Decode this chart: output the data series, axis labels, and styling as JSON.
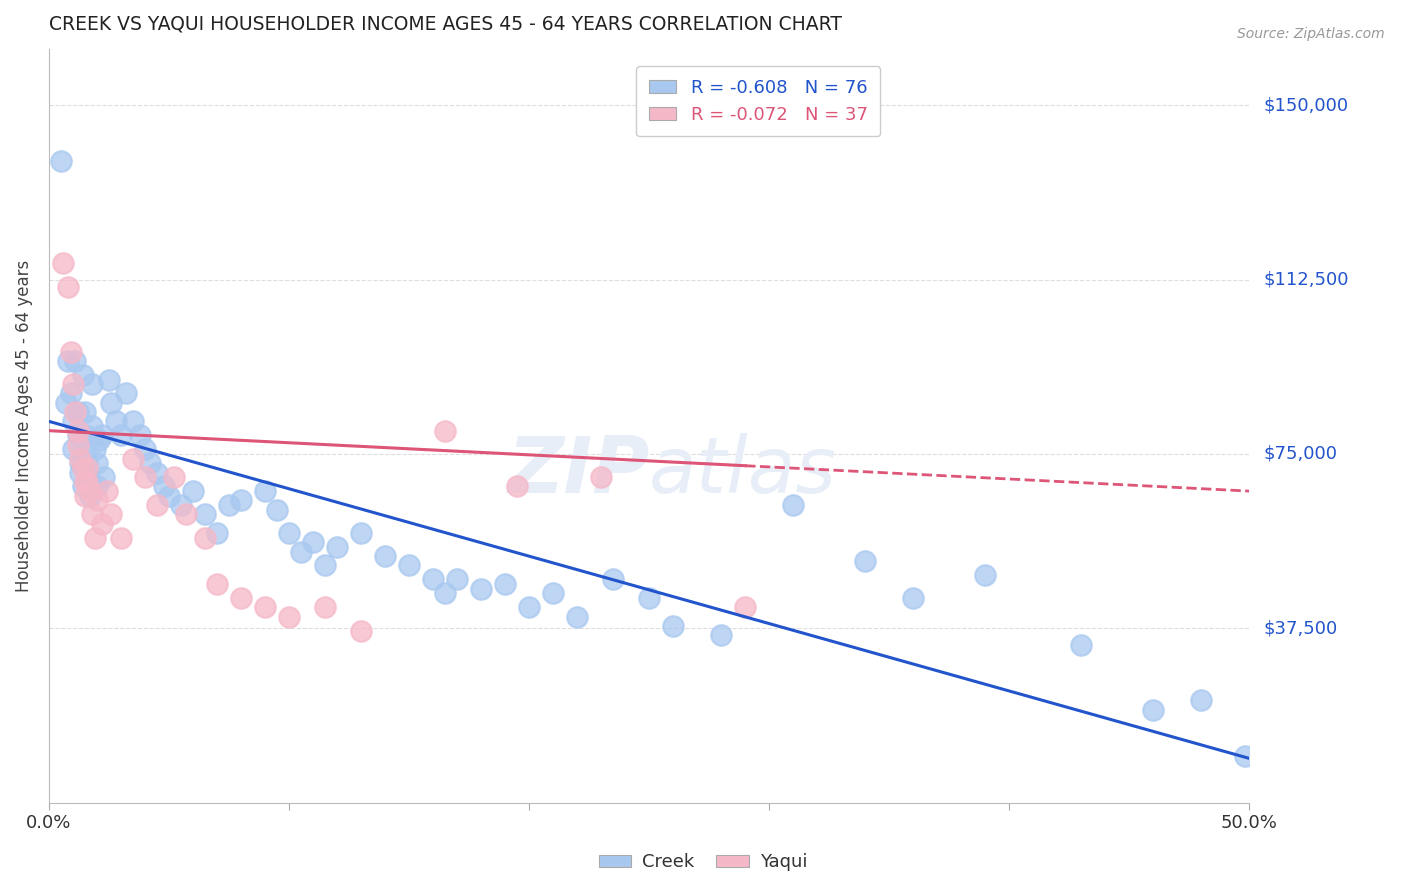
{
  "title": "CREEK VS YAQUI HOUSEHOLDER INCOME AGES 45 - 64 YEARS CORRELATION CHART",
  "source": "Source: ZipAtlas.com",
  "ylabel": "Householder Income Ages 45 - 64 years",
  "xlim": [
    0.0,
    0.5
  ],
  "ylim": [
    0,
    162000
  ],
  "yticks": [
    0,
    37500,
    75000,
    112500,
    150000
  ],
  "ytick_labels": [
    "",
    "$37,500",
    "$75,000",
    "$112,500",
    "$150,000"
  ],
  "xticks": [
    0.0,
    0.1,
    0.2,
    0.3,
    0.4,
    0.5
  ],
  "xtick_labels": [
    "0.0%",
    "",
    "",
    "",
    "",
    "50.0%"
  ],
  "creek_R": -0.608,
  "creek_N": 76,
  "yaqui_R": -0.072,
  "yaqui_N": 37,
  "creek_color": "#A8C8F0",
  "yaqui_color": "#F5B8C8",
  "creek_line_color": "#2255CC",
  "yaqui_line_color": "#DD5577",
  "background_color": "#FFFFFF",
  "grid_color": "#DDDDDD",
  "title_color": "#222222",
  "axis_label_color": "#444444",
  "right_label_color": "#2255CC",
  "creek_line_intercept": 82000,
  "creek_line_slope": -145000,
  "yaqui_line_intercept": 80000,
  "yaqui_line_slope": -26000,
  "creek_x": [
    0.005,
    0.007,
    0.008,
    0.009,
    0.01,
    0.01,
    0.011,
    0.012,
    0.012,
    0.013,
    0.013,
    0.014,
    0.014,
    0.015,
    0.015,
    0.015,
    0.016,
    0.016,
    0.017,
    0.017,
    0.018,
    0.018,
    0.019,
    0.02,
    0.02,
    0.021,
    0.022,
    0.023,
    0.025,
    0.026,
    0.028,
    0.03,
    0.032,
    0.035,
    0.038,
    0.04,
    0.042,
    0.045,
    0.048,
    0.05,
    0.055,
    0.06,
    0.065,
    0.07,
    0.075,
    0.08,
    0.09,
    0.095,
    0.1,
    0.105,
    0.11,
    0.115,
    0.12,
    0.13,
    0.14,
    0.15,
    0.16,
    0.165,
    0.17,
    0.18,
    0.19,
    0.2,
    0.21,
    0.22,
    0.235,
    0.25,
    0.26,
    0.28,
    0.31,
    0.34,
    0.36,
    0.39,
    0.43,
    0.46,
    0.48,
    0.498
  ],
  "creek_y": [
    138000,
    86000,
    95000,
    88000,
    82000,
    76000,
    95000,
    84000,
    79000,
    73000,
    71000,
    68000,
    92000,
    84000,
    79000,
    76000,
    73000,
    71000,
    69000,
    66000,
    90000,
    81000,
    76000,
    73000,
    68000,
    78000,
    79000,
    70000,
    91000,
    86000,
    82000,
    79000,
    88000,
    82000,
    79000,
    76000,
    73000,
    71000,
    68000,
    66000,
    64000,
    67000,
    62000,
    58000,
    64000,
    65000,
    67000,
    63000,
    58000,
    54000,
    56000,
    51000,
    55000,
    58000,
    53000,
    51000,
    48000,
    45000,
    48000,
    46000,
    47000,
    42000,
    45000,
    40000,
    48000,
    44000,
    38000,
    36000,
    64000,
    52000,
    44000,
    49000,
    34000,
    20000,
    22000,
    10000
  ],
  "yaqui_x": [
    0.006,
    0.008,
    0.009,
    0.01,
    0.011,
    0.012,
    0.012,
    0.013,
    0.014,
    0.015,
    0.015,
    0.016,
    0.016,
    0.017,
    0.018,
    0.019,
    0.02,
    0.022,
    0.024,
    0.026,
    0.03,
    0.035,
    0.04,
    0.045,
    0.052,
    0.057,
    0.065,
    0.07,
    0.08,
    0.09,
    0.1,
    0.115,
    0.13,
    0.165,
    0.195,
    0.23,
    0.29
  ],
  "yaqui_y": [
    116000,
    111000,
    97000,
    90000,
    84000,
    80000,
    77000,
    74000,
    72000,
    69000,
    66000,
    72000,
    69000,
    67000,
    62000,
    57000,
    65000,
    60000,
    67000,
    62000,
    57000,
    74000,
    70000,
    64000,
    70000,
    62000,
    57000,
    47000,
    44000,
    42000,
    40000,
    42000,
    37000,
    80000,
    68000,
    70000,
    42000
  ]
}
